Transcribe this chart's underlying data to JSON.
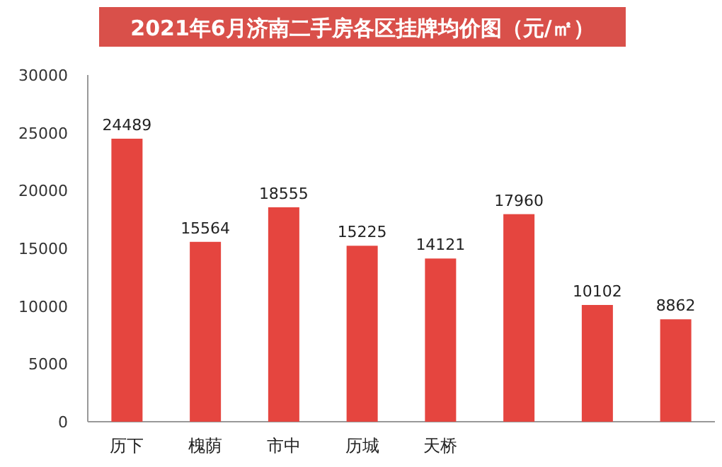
{
  "chart_data": {
    "type": "bar",
    "title": "2021年6月济南二手房各区挂牌均价图（元/㎡）",
    "categories": [
      "历下",
      "槐荫",
      "市中",
      "历城",
      "天桥",
      null,
      null,
      null
    ],
    "values": [
      24489,
      15564,
      18555,
      15225,
      14121,
      17960,
      10102,
      8862
    ],
    "color": "#e5453f",
    "ylim": [
      0,
      30000
    ],
    "yticks": [
      0,
      5000,
      10000,
      15000,
      20000,
      25000,
      30000
    ],
    "data_labels": true
  }
}
